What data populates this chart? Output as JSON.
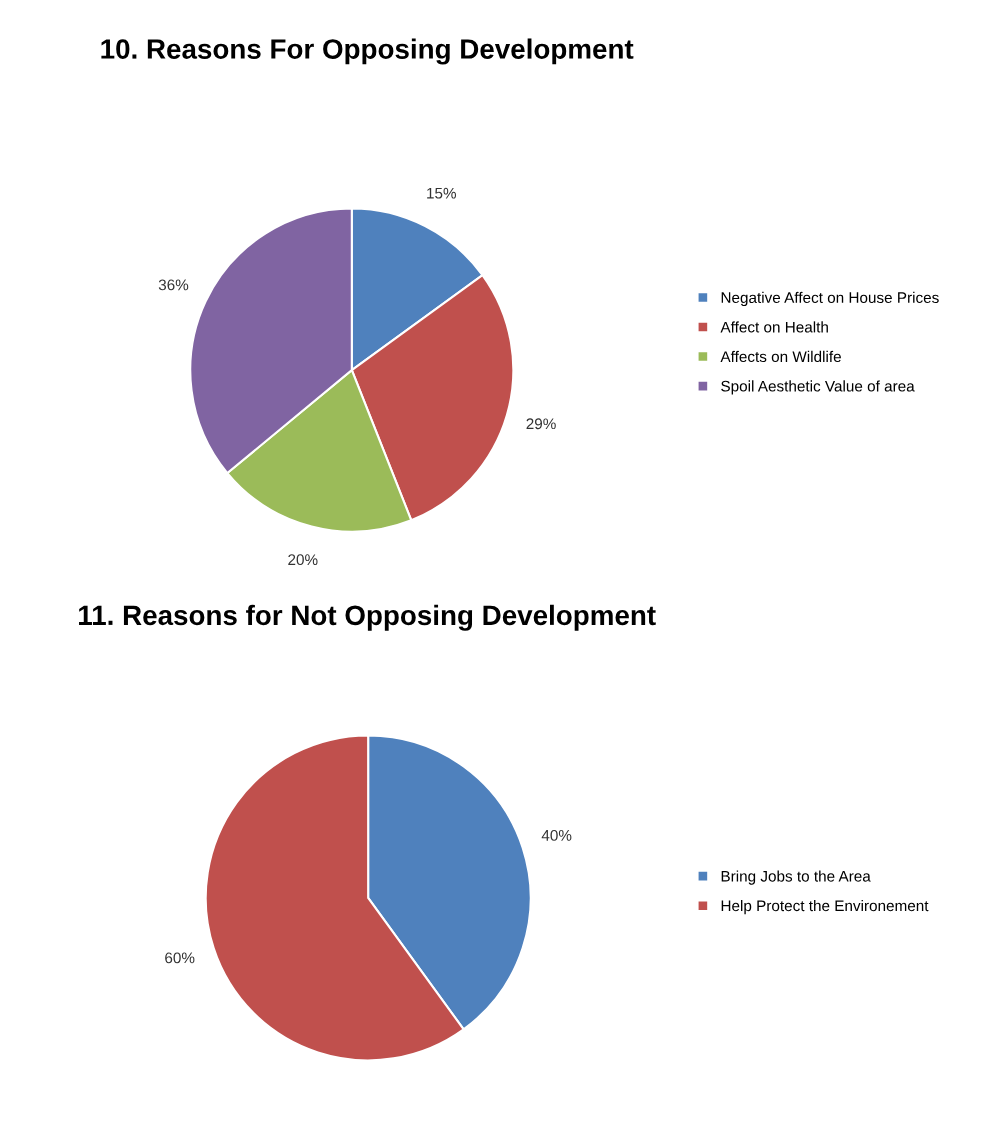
{
  "chart_data": [
    {
      "type": "pie",
      "title": "10. Reasons For Opposing Development",
      "categories": [
        "Negative Affect on House Prices",
        "Affect on Health",
        "Affects on Wildlife",
        "Spoil Aesthetic Value of area"
      ],
      "values": [
        15,
        29,
        20,
        36
      ],
      "colors": [
        "#4f81bd",
        "#c0504d",
        "#9bbb59",
        "#8064a2"
      ],
      "value_labels": [
        "15%",
        "29%",
        "20%",
        "36%"
      ],
      "legend": "right"
    },
    {
      "type": "pie",
      "title": "11. Reasons for Not Opposing Development",
      "categories": [
        "Bring Jobs to the Area",
        "Help Protect the Environement"
      ],
      "values": [
        40,
        60
      ],
      "colors": [
        "#4f81bd",
        "#c0504d"
      ],
      "value_labels": [
        "40%",
        "60%"
      ],
      "legend": "right"
    }
  ]
}
